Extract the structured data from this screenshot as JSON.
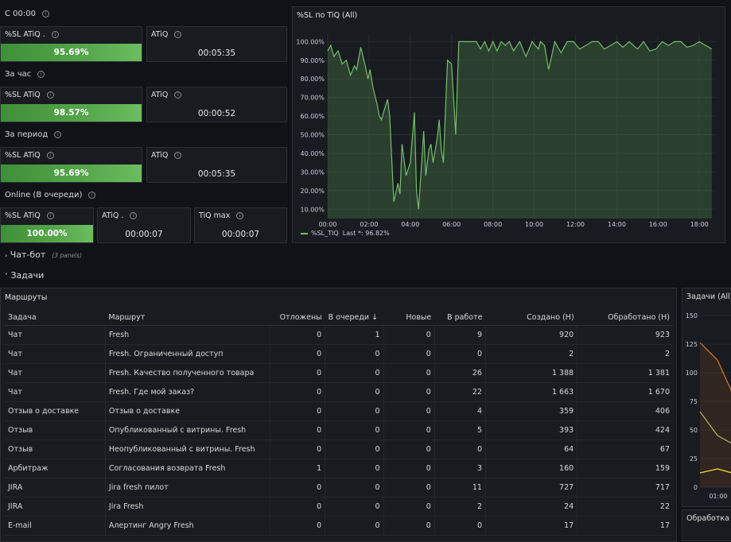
{
  "sections": {
    "since_midnight": "С 00:00",
    "per_hour": "За час",
    "per_period": "За период",
    "online": "Online (В очереди)"
  },
  "stats": {
    "row1": {
      "sl_label": "%SL ATiQ .",
      "sl_value": "95.69%",
      "atiq_label": "ATiQ",
      "atiq_value": "00:05:35"
    },
    "row2": {
      "sl_label": "%SL ATiQ",
      "sl_value": "98.57%",
      "atiq_label": "ATiQ",
      "atiq_value": "00:00:52"
    },
    "row3": {
      "sl_label": "%SL ATiQ",
      "sl_value": "95.69%",
      "atiq_label": "ATiQ",
      "atiq_value": "00:05:35"
    },
    "row4": {
      "sl_label": "%SL ATiQ",
      "sl_value": "100.00%",
      "atiq_label": "ATiQ .",
      "atiq_value": "00:00:07",
      "tiqmax_label": "TiQ max",
      "tiqmax_value": "00:00:07"
    }
  },
  "timeseries": {
    "title": "%SL по TiQ (All)",
    "legend_name": "%SL_TIQ",
    "legend_last": "Last *: 96.82%",
    "line_color": "#73bf69"
  },
  "chart_data": {
    "type": "line",
    "x_ticks": [
      "00:00",
      "02:00",
      "04:00",
      "06:00",
      "08:00",
      "10:00",
      "12:00",
      "14:00",
      "16:00",
      "18:00"
    ],
    "y_ticks": [
      "100.00%",
      "90.00%",
      "80.00%",
      "70.00%",
      "60.00%",
      "50.00%",
      "40.00%",
      "30.00%",
      "20.00%",
      "10.00%"
    ],
    "ylim": [
      5,
      104
    ],
    "xlim": [
      0,
      18.8
    ],
    "series": [
      {
        "name": "%SL_TIQ",
        "x": [
          0,
          0.15,
          0.3,
          0.5,
          0.7,
          0.9,
          1.1,
          1.3,
          1.4,
          1.6,
          1.8,
          1.95,
          2.05,
          2.2,
          2.4,
          2.5,
          2.6,
          2.7,
          2.9,
          3.0,
          3.2,
          3.4,
          3.5,
          3.6,
          3.8,
          4.0,
          4.2,
          4.3,
          4.4,
          4.55,
          4.65,
          4.75,
          4.9,
          5.0,
          5.1,
          5.3,
          5.4,
          5.5,
          5.6,
          5.8,
          6.0,
          6.2,
          6.35,
          6.5,
          7.0,
          7.2,
          7.4,
          7.6,
          7.8,
          8.0,
          8.2,
          8.4,
          8.6,
          8.8,
          9.0,
          9.3,
          9.6,
          9.9,
          10.2,
          10.3,
          10.5,
          10.7,
          11.0,
          11.3,
          11.6,
          11.9,
          12.2,
          12.5,
          12.8,
          13.1,
          13.4,
          13.7,
          14.0,
          14.3,
          14.6,
          14.8,
          15.0,
          15.3,
          15.6,
          15.9,
          16.2,
          16.5,
          16.8,
          17.1,
          17.4,
          17.7,
          18.0,
          18.3,
          18.6
        ],
        "y": [
          95,
          98,
          92,
          95,
          88,
          90,
          82,
          87,
          85,
          97,
          88,
          80,
          85,
          75,
          66,
          60,
          58,
          62,
          69,
          60,
          14,
          24,
          18,
          45,
          28,
          35,
          62,
          20,
          10,
          35,
          52,
          28,
          42,
          45,
          35,
          48,
          58,
          42,
          35,
          90,
          88,
          50,
          100,
          100,
          100,
          100,
          96,
          100,
          95,
          100,
          95,
          100,
          98,
          100,
          95,
          100,
          92,
          100,
          96,
          100,
          98,
          85,
          100,
          94,
          100,
          100,
          96,
          98,
          100,
          100,
          96,
          98,
          100,
          97,
          100,
          98,
          96,
          100,
          95,
          96,
          100,
          98,
          100,
          100,
          97,
          98,
          100,
          98,
          96
        ]
      }
    ]
  },
  "rows": {
    "chatbot": {
      "label": "Чат-бот",
      "sub": "(3 panels)"
    },
    "tasks": {
      "label": "Задачи"
    }
  },
  "routes": {
    "title": "Маршруты",
    "headers": {
      "task": "Задача",
      "route": "Маршрут",
      "postponed": "Отложены",
      "queue": "В очереди",
      "new": "Новые",
      "in_work": "В работе",
      "created": "Создано (Н)",
      "processed": "Обработано (Н)"
    },
    "rows": [
      {
        "task": "Чат",
        "route": "Fresh",
        "postponed": "0",
        "queue": "1",
        "new": "0",
        "in_work": "9",
        "created": "920",
        "processed": "923"
      },
      {
        "task": "Чат",
        "route": "Fresh. Ограниченный доступ",
        "postponed": "0",
        "queue": "0",
        "new": "0",
        "in_work": "0",
        "created": "2",
        "processed": "2"
      },
      {
        "task": "Чат",
        "route": "Fresh. Качество полученного товара",
        "postponed": "0",
        "queue": "0",
        "new": "0",
        "in_work": "26",
        "created": "1 388",
        "processed": "1 381"
      },
      {
        "task": "Чат",
        "route": "Fresh. Где мой заказ?",
        "postponed": "0",
        "queue": "0",
        "new": "0",
        "in_work": "22",
        "created": "1 663",
        "processed": "1 670"
      },
      {
        "task": "Отзыв о доставке",
        "route": "Отзыв о доставке",
        "postponed": "0",
        "queue": "0",
        "new": "0",
        "in_work": "4",
        "created": "359",
        "processed": "406"
      },
      {
        "task": "Отзыв",
        "route": "Опубликованный с витрины. Fresh",
        "postponed": "0",
        "queue": "0",
        "new": "0",
        "in_work": "5",
        "created": "393",
        "processed": "424"
      },
      {
        "task": "Отзыв",
        "route": "Неопубликованный с витрины. Fresh",
        "postponed": "0",
        "queue": "0",
        "new": "0",
        "in_work": "0",
        "created": "64",
        "processed": "67"
      },
      {
        "task": "Арбитраж",
        "route": "Согласования возврата Fresh",
        "postponed": "1",
        "queue": "0",
        "new": "0",
        "in_work": "3",
        "created": "160",
        "processed": "159"
      },
      {
        "task": "JIRA",
        "route": "Jira fresh пилот",
        "postponed": "0",
        "queue": "0",
        "new": "0",
        "in_work": "11",
        "created": "727",
        "processed": "717"
      },
      {
        "task": "JIRA",
        "route": "Jira Fresh",
        "postponed": "0",
        "queue": "0",
        "new": "0",
        "in_work": "2",
        "created": "24",
        "processed": "22"
      },
      {
        "task": "E-mail",
        "route": "Алертинг Angry Fresh",
        "postponed": "0",
        "queue": "0",
        "new": "0",
        "in_work": "0",
        "created": "17",
        "processed": "17"
      }
    ]
  },
  "tasks_panel": {
    "title": "Задачи (All)",
    "y_ticks": [
      "150",
      "125",
      "100",
      "75",
      "50",
      "25",
      "0"
    ],
    "x_tick": "01:00"
  },
  "processing_panel": {
    "title": "Обработка ч"
  }
}
